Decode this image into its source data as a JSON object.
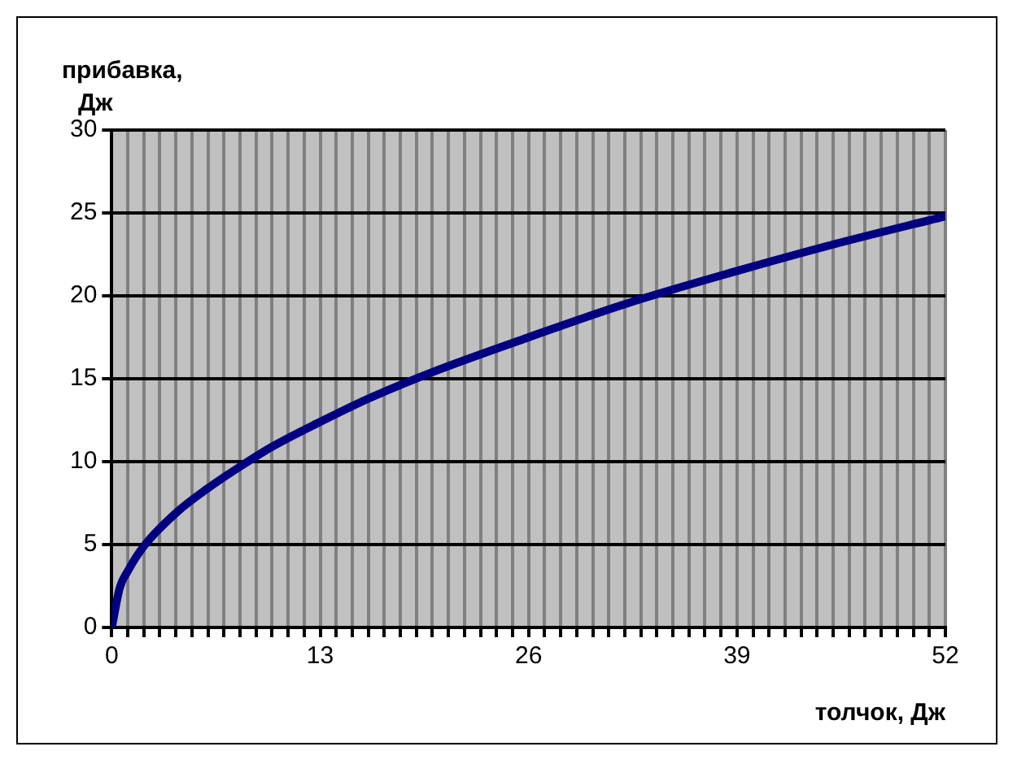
{
  "chart_data": {
    "type": "line",
    "xlabel": "толчок, Дж",
    "ylabel": "прибавка, Дж",
    "x": [
      0,
      0.5,
      1,
      2,
      4,
      6,
      8,
      10,
      13,
      16,
      20,
      26,
      32,
      39,
      45,
      52
    ],
    "series": [
      {
        "color": "#000080",
        "values": [
          0,
          2.4,
          3.4,
          4.9,
          6.9,
          8.4,
          9.7,
          10.9,
          12.4,
          13.8,
          15.4,
          17.5,
          19.5,
          21.5,
          23.1,
          24.8
        ]
      }
    ],
    "xlim": [
      0,
      52
    ],
    "ylim": [
      0,
      30
    ],
    "xticks": [
      0,
      {
        "value": 1,
        "label": null
      },
      {
        "value": 2,
        "label": null
      },
      {
        "value": 3,
        "label": null
      },
      {
        "value": 4,
        "label": null
      },
      {
        "value": 5,
        "label": null
      },
      {
        "value": 6,
        "label": null
      },
      {
        "value": 7,
        "label": null
      },
      {
        "value": 8,
        "label": null
      },
      {
        "value": 9,
        "label": null
      },
      {
        "value": 10,
        "label": null
      },
      {
        "value": 11,
        "label": null
      },
      {
        "value": 12,
        "label": null
      },
      13,
      {
        "value": 14,
        "label": null
      },
      {
        "value": 15,
        "label": null
      },
      {
        "value": 16,
        "label": null
      },
      {
        "value": 17,
        "label": null
      },
      {
        "value": 18,
        "label": null
      },
      {
        "value": 19,
        "label": null
      },
      {
        "value": 20,
        "label": null
      },
      {
        "value": 21,
        "label": null
      },
      {
        "value": 22,
        "label": null
      },
      {
        "value": 23,
        "label": null
      },
      {
        "value": 24,
        "label": null
      },
      {
        "value": 25,
        "label": null
      },
      26,
      {
        "value": 27,
        "label": null
      },
      {
        "value": 28,
        "label": null
      },
      {
        "value": 29,
        "label": null
      },
      {
        "value": 30,
        "label": null
      },
      {
        "value": 31,
        "label": null
      },
      {
        "value": 32,
        "label": null
      },
      {
        "value": 33,
        "label": null
      },
      {
        "value": 34,
        "label": null
      },
      {
        "value": 35,
        "label": null
      },
      {
        "value": 36,
        "label": null
      },
      {
        "value": 37,
        "label": null
      },
      {
        "value": 38,
        "label": null
      },
      39,
      {
        "value": 40,
        "label": null
      },
      {
        "value": 41,
        "label": null
      },
      {
        "value": 42,
        "label": null
      },
      {
        "value": 43,
        "label": null
      },
      {
        "value": 44,
        "label": null
      },
      {
        "value": 45,
        "label": null
      },
      {
        "value": 46,
        "label": null
      },
      {
        "value": 47,
        "label": null
      },
      {
        "value": 48,
        "label": null
      },
      {
        "value": 49,
        "label": null
      },
      {
        "value": 50,
        "label": null
      },
      {
        "value": 51,
        "label": null
      },
      52
    ],
    "yticks": [
      0,
      5,
      10,
      15,
      20,
      25,
      30
    ],
    "grid": true,
    "marker": "none",
    "line_style": "solid",
    "legend": false
  }
}
